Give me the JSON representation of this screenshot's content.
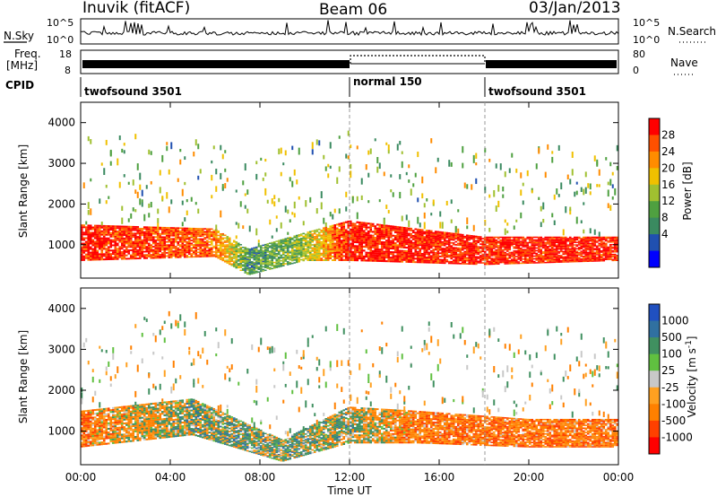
{
  "header": {
    "station": "Inuvik (fitACF)",
    "beam": "Beam 06",
    "date": "03/Jan/2013"
  },
  "noise_panel": {
    "left_label": "N.Sky",
    "left_ticks": [
      "10^5",
      "10^0"
    ],
    "right_label": "N.Search",
    "right_ticks": [
      "10^5",
      "10^0"
    ]
  },
  "freq_panel": {
    "left_label_1": "Freq.",
    "left_label_2": "[MHz]",
    "left_ticks": [
      "18",
      "8"
    ],
    "right_label": "Nave",
    "right_ticks": [
      "80",
      "0"
    ]
  },
  "cpid_panel": {
    "label": "CPID",
    "segments": [
      {
        "name": "twofsound 3501",
        "start_hour": 0,
        "end_hour": 12
      },
      {
        "name": "normal 150",
        "start_hour": 12,
        "end_hour": 18
      },
      {
        "name": "twofsound 3501",
        "start_hour": 18,
        "end_hour": 24
      }
    ]
  },
  "colors": {
    "power_scale": [
      "#0000ff",
      "#2050b0",
      "#3a8a60",
      "#4fa040",
      "#a0c030",
      "#f0c000",
      "#ff8c00",
      "#ff5000",
      "#ff0000"
    ],
    "velocity_scale": [
      "#2050c0",
      "#3070a0",
      "#409060",
      "#60c040",
      "#c8c8c8",
      "#ffa020",
      "#ff8000",
      "#ff4000",
      "#ff0000"
    ]
  },
  "chart_data": [
    {
      "type": "heatmap",
      "title": "Power",
      "xlabel": "Time UT",
      "ylabel": "Slant Range [km]",
      "xlim": [
        0,
        24
      ],
      "ylim": [
        180,
        4500
      ],
      "x_ticks": [
        "00:00",
        "04:00",
        "08:00",
        "12:00",
        "16:00",
        "20:00",
        "00:00"
      ],
      "y_ticks": [
        "1000",
        "2000",
        "3000",
        "4000"
      ],
      "colorbar": {
        "label": "Power [dB]",
        "range": [
          0,
          30
        ],
        "ticks": [
          "4",
          "8",
          "12",
          "16",
          "20",
          "24",
          "28"
        ]
      },
      "dominant_band": [
        {
          "hour": 0,
          "range_low": 600,
          "range_high": 1500,
          "value": 28
        },
        {
          "hour": 6,
          "range_low": 700,
          "range_high": 1400,
          "value": 24
        },
        {
          "hour": 7.5,
          "range_low": 250,
          "range_high": 900,
          "value": 10
        },
        {
          "hour": 10,
          "range_low": 600,
          "range_high": 1300,
          "value": 14
        },
        {
          "hour": 12,
          "range_low": 600,
          "range_high": 1600,
          "value": 28
        },
        {
          "hour": 18,
          "range_low": 500,
          "range_high": 1200,
          "value": 28
        },
        {
          "hour": 24,
          "range_low": 600,
          "range_high": 1200,
          "value": 28
        }
      ]
    },
    {
      "type": "heatmap",
      "title": "Velocity",
      "xlabel": "Time UT",
      "ylabel": "Slant Range [km]",
      "xlim": [
        0,
        24
      ],
      "ylim": [
        180,
        4500
      ],
      "x_ticks": [
        "00:00",
        "04:00",
        "08:00",
        "12:00",
        "16:00",
        "20:00",
        "00:00"
      ],
      "y_ticks": [
        "1000",
        "2000",
        "3000",
        "4000"
      ],
      "colorbar": {
        "label": "Velocity [m s^-1]",
        "ticks": [
          "1000",
          "500",
          "100",
          "25",
          "-25",
          "-100",
          "-500",
          "-1000"
        ]
      },
      "dominant_band": [
        {
          "hour": 0,
          "range_low": 600,
          "range_high": 1500,
          "value": -300
        },
        {
          "hour": 5,
          "range_low": 900,
          "range_high": 1800,
          "value": 100
        },
        {
          "hour": 9,
          "range_low": 250,
          "range_high": 800,
          "value": 100
        },
        {
          "hour": 12,
          "range_low": 700,
          "range_high": 1600,
          "value": 50
        },
        {
          "hour": 15,
          "range_low": 700,
          "range_high": 1500,
          "value": -300
        },
        {
          "hour": 20,
          "range_low": 600,
          "range_high": 1300,
          "value": -300
        }
      ]
    }
  ],
  "x_axis_label": "Time UT"
}
